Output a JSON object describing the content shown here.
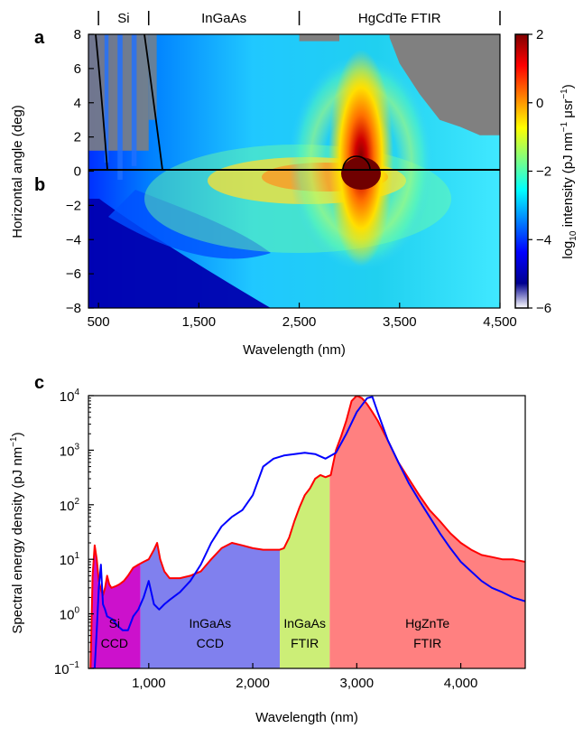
{
  "panel_labels": {
    "a": "a",
    "b": "b",
    "c": "c"
  },
  "chart_data": [
    {
      "type": "heatmap",
      "panels": [
        "a",
        "b"
      ],
      "xlabel": "Wavelength (nm)",
      "ylabel": "Horizontal angle (deg)",
      "xlim": [
        400,
        4500
      ],
      "ylim": [
        -8,
        8
      ],
      "x_ticks": [
        500,
        1500,
        2500,
        3500,
        4500
      ],
      "x_tick_labels": [
        "500",
        "1,500",
        "2,500",
        "3,500",
        "4,500"
      ],
      "y_ticks": [
        8,
        6,
        4,
        2,
        0,
        -2,
        -4,
        -6,
        -8
      ],
      "y_tick_labels": [
        "8",
        "6",
        "4",
        "2",
        "0",
        "−2",
        "−4",
        "−6",
        "−8"
      ],
      "detector_regions": [
        {
          "label": "Si",
          "from": 400,
          "to": 1000
        },
        {
          "label": "InGaAs",
          "from": 1000,
          "to": 2500
        },
        {
          "label": "HgCdTe FTIR",
          "from": 2500,
          "to": 4500
        }
      ],
      "colorbar": {
        "label_parts": [
          "log",
          "10",
          " intensity (pJ nm",
          "−1",
          " μsr",
          "−1",
          ")"
        ],
        "range": [
          -6,
          2
        ],
        "ticks": [
          2,
          0,
          -2,
          -4,
          -6
        ],
        "tick_labels": [
          "2",
          "0",
          "−2",
          "−4",
          "−6"
        ],
        "colors": [
          "#ffffff",
          "#00008f",
          "#0000ff",
          "#0080ff",
          "#00ffff",
          "#80ff80",
          "#ffff00",
          "#ff8000",
          "#ff0000",
          "#800000"
        ]
      },
      "colors": {
        "no_data": "#808080"
      }
    },
    {
      "type": "area",
      "panel": "c",
      "xlabel": "Wavelength (nm)",
      "ylabel_parts": [
        "Spectral energy density (pJ nm",
        "−1",
        ")"
      ],
      "xlim": [
        420,
        4620
      ],
      "ylim": [
        0.1,
        10000
      ],
      "y_scale": "log",
      "x_ticks": [
        1000,
        2000,
        3000,
        4000
      ],
      "x_tick_labels": [
        "1,000",
        "2,000",
        "3,000",
        "4,000"
      ],
      "y_tick_exponents": [
        -1,
        0,
        1,
        2,
        3,
        4
      ],
      "regions": [
        {
          "line1": "Si",
          "line2": "CCD",
          "from": 420,
          "to": 920,
          "color": "#cc11cc"
        },
        {
          "line1": "InGaAs",
          "line2": "CCD",
          "from": 920,
          "to": 2260,
          "color": "#8080ee"
        },
        {
          "line1": "InGaAs",
          "line2": "FTIR",
          "from": 2260,
          "to": 2740,
          "color": "#ccee77"
        },
        {
          "line1": "HgZnTe",
          "line2": "FTIR",
          "from": 2740,
          "to": 4620,
          "color": "#ff8080"
        }
      ],
      "series": [
        {
          "color": "#ff0000",
          "x": [
            440,
            460,
            480,
            500,
            520,
            540,
            560,
            580,
            600,
            620,
            640,
            680,
            720,
            760,
            800,
            850,
            900,
            950,
            1000,
            1050,
            1080,
            1110,
            1150,
            1200,
            1300,
            1400,
            1500,
            1600,
            1700,
            1800,
            1900,
            2000,
            2100,
            2200,
            2260,
            2300,
            2350,
            2400,
            2450,
            2500,
            2550,
            2600,
            2650,
            2700,
            2750,
            2800,
            2850,
            2900,
            2950,
            3000,
            3050,
            3100,
            3150,
            3200,
            3300,
            3400,
            3500,
            3600,
            3700,
            3800,
            3900,
            4000,
            4100,
            4200,
            4300,
            4400,
            4500,
            4620
          ],
          "y": [
            0.1,
            5,
            18,
            10,
            4,
            2.8,
            2.2,
            3,
            5,
            3.5,
            3,
            3.2,
            3.5,
            4,
            5,
            7,
            8,
            9,
            10,
            15,
            20,
            10,
            6,
            4.5,
            4.5,
            5,
            6,
            10,
            16,
            20,
            18,
            16,
            15,
            15,
            15,
            16,
            25,
            50,
            90,
            150,
            200,
            300,
            350,
            320,
            350,
            1000,
            1800,
            3500,
            8000,
            10000,
            9000,
            7000,
            5000,
            3500,
            1500,
            600,
            300,
            150,
            80,
            50,
            30,
            20,
            15,
            12,
            11,
            10,
            10,
            9
          ]
        },
        {
          "color": "#0000ff",
          "x": [
            460,
            480,
            500,
            520,
            540,
            560,
            580,
            600,
            650,
            700,
            750,
            800,
            850,
            900,
            950,
            1000,
            1050,
            1100,
            1150,
            1200,
            1300,
            1400,
            1500,
            1600,
            1700,
            1800,
            1900,
            2000,
            2100,
            2200,
            2300,
            2400,
            2500,
            2600,
            2700,
            2800,
            2900,
            3000,
            3100,
            3150,
            3200,
            3300,
            3400,
            3500,
            3600,
            3700,
            3800,
            3900,
            4000,
            4100,
            4200,
            4300,
            4400,
            4500,
            4620
          ],
          "y": [
            0.1,
            0.1,
            0.5,
            3,
            8,
            1.5,
            1.2,
            0.9,
            0.8,
            0.6,
            0.5,
            0.5,
            0.9,
            1.2,
            2,
            4,
            1.5,
            1.2,
            1.5,
            1.8,
            2.5,
            4,
            8,
            20,
            40,
            60,
            80,
            150,
            500,
            700,
            800,
            850,
            900,
            850,
            700,
            900,
            2000,
            5000,
            9000,
            9500,
            5000,
            1500,
            600,
            250,
            120,
            60,
            30,
            16,
            9,
            6,
            4,
            3,
            2.5,
            2,
            1.7
          ]
        }
      ]
    }
  ]
}
